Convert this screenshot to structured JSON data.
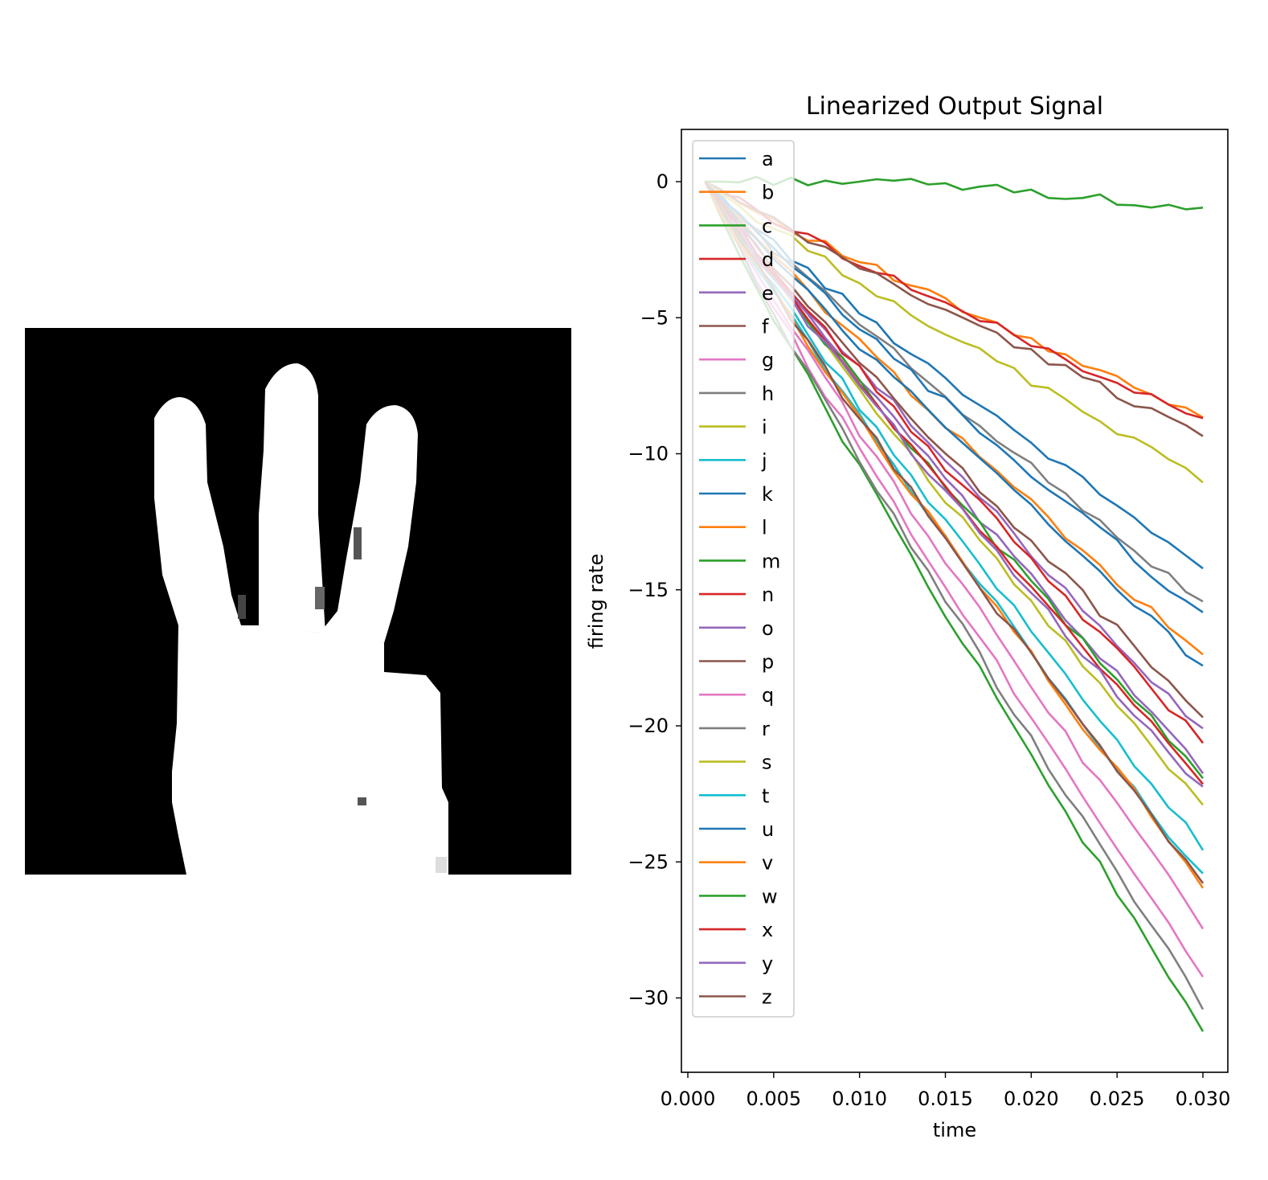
{
  "chart_data": [
    {
      "type": "image",
      "grid": false,
      "colormap": "gray",
      "subject": "hand with three extended fingers (sign language letter)"
    },
    {
      "type": "line",
      "title": "Linearized Output Signal",
      "xlabel": "time",
      "ylabel": "firing rate",
      "xlim": [
        0.0,
        0.03
      ],
      "ylim": [
        -32.8,
        1.9
      ],
      "xticks": [
        0.0,
        0.005,
        0.01,
        0.015,
        0.02,
        0.025,
        0.03
      ],
      "xtick_labels": [
        "0.000",
        "0.005",
        "0.010",
        "0.015",
        "0.020",
        "0.025",
        "0.030"
      ],
      "yticks": [
        0,
        -5,
        -10,
        -15,
        -20,
        -25,
        -30
      ],
      "ytick_labels": [
        "0",
        "−5",
        "−10",
        "−15",
        "−20",
        "−25",
        "−30"
      ],
      "grid": false,
      "legend_position": "upper-left",
      "x_start": 0.001,
      "x_end": 0.03,
      "series": [
        {
          "name": "a",
          "color": "#1f77b4",
          "final": -14.2
        },
        {
          "name": "b",
          "color": "#ff7f0e",
          "final": -8.7
        },
        {
          "name": "c",
          "color": "#2ca02c",
          "final": -1.2
        },
        {
          "name": "d",
          "color": "#d62728",
          "final": -8.8
        },
        {
          "name": "e",
          "color": "#9467bd",
          "final": -20.2
        },
        {
          "name": "f",
          "color": "#8c564b",
          "final": -9.3
        },
        {
          "name": "g",
          "color": "#e377c2",
          "final": -29.1
        },
        {
          "name": "h",
          "color": "#7f7f7f",
          "final": -15.5
        },
        {
          "name": "i",
          "color": "#bcbd22",
          "final": -10.9
        },
        {
          "name": "j",
          "color": "#17becf",
          "final": -25.6
        },
        {
          "name": "k",
          "color": "#1f77b4",
          "final": -15.9
        },
        {
          "name": "l",
          "color": "#ff7f0e",
          "final": -17.5
        },
        {
          "name": "m",
          "color": "#2ca02c",
          "final": -31.2
        },
        {
          "name": "n",
          "color": "#d62728",
          "final": -20.6
        },
        {
          "name": "o",
          "color": "#9467bd",
          "final": -21.6
        },
        {
          "name": "p",
          "color": "#8c564b",
          "final": -19.6
        },
        {
          "name": "q",
          "color": "#e377c2",
          "final": -27.4
        },
        {
          "name": "r",
          "color": "#7f7f7f",
          "final": -30.3
        },
        {
          "name": "s",
          "color": "#bcbd22",
          "final": -22.9
        },
        {
          "name": "t",
          "color": "#17becf",
          "final": -24.5
        },
        {
          "name": "u",
          "color": "#1f77b4",
          "final": -17.8
        },
        {
          "name": "v",
          "color": "#ff7f0e",
          "final": -25.8
        },
        {
          "name": "w",
          "color": "#2ca02c",
          "final": -21.9
        },
        {
          "name": "x",
          "color": "#d62728",
          "final": -22.1
        },
        {
          "name": "y",
          "color": "#9467bd",
          "final": -22.4
        },
        {
          "name": "z",
          "color": "#8c564b",
          "final": -25.8
        }
      ]
    }
  ]
}
